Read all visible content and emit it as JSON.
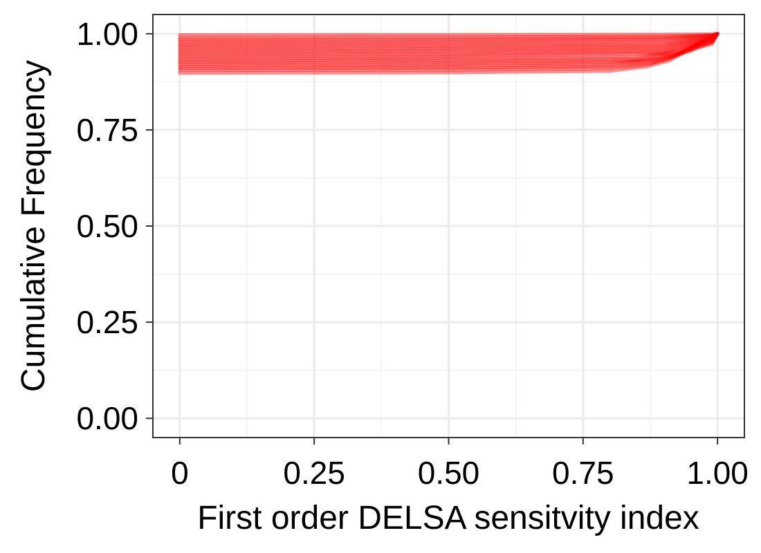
{
  "chart_data": {
    "type": "line",
    "title": "",
    "xlabel": "First order DELSA sensitvity index",
    "ylabel": "Cumulative Frequency",
    "xlim": [
      -0.05,
      1.05
    ],
    "ylim": [
      -0.05,
      1.05
    ],
    "x_ticks": [
      0,
      0.25,
      0.5,
      0.75,
      1.0
    ],
    "x_tick_labels": [
      "0",
      "0.25",
      "0.50",
      "0.75",
      "1.00"
    ],
    "y_ticks": [
      0,
      0.25,
      0.5,
      0.75,
      1.0
    ],
    "y_tick_labels": [
      "0.00",
      "0.25",
      "0.50",
      "0.75",
      "1.00"
    ],
    "grid": true,
    "legend": "none",
    "line_color": "#ff0000",
    "series": [
      {
        "values": [
          [
            0,
            0.997
          ],
          [
            0.5,
            0.9975
          ],
          [
            0.9,
            0.998
          ],
          [
            0.99,
            0.999
          ],
          [
            1.0,
            1.0
          ]
        ]
      },
      {
        "values": [
          [
            0,
            0.99
          ],
          [
            0.5,
            0.991
          ],
          [
            0.9,
            0.993
          ],
          [
            0.99,
            0.997
          ],
          [
            1.0,
            1.0
          ]
        ]
      },
      {
        "values": [
          [
            0,
            0.985
          ],
          [
            0.5,
            0.986
          ],
          [
            0.9,
            0.989
          ],
          [
            0.99,
            0.996
          ],
          [
            1.0,
            1.0
          ]
        ]
      },
      {
        "values": [
          [
            0,
            0.98
          ],
          [
            0.5,
            0.981
          ],
          [
            0.9,
            0.985
          ],
          [
            0.99,
            0.995
          ],
          [
            1.0,
            1.0
          ]
        ]
      },
      {
        "values": [
          [
            0,
            0.975
          ],
          [
            0.5,
            0.976
          ],
          [
            0.9,
            0.98
          ],
          [
            0.99,
            0.993
          ],
          [
            1.0,
            1.0
          ]
        ]
      },
      {
        "values": [
          [
            0,
            0.97
          ],
          [
            0.5,
            0.971
          ],
          [
            0.9,
            0.975
          ],
          [
            0.99,
            0.991
          ],
          [
            1.0,
            1.0
          ]
        ]
      },
      {
        "values": [
          [
            0,
            0.965
          ],
          [
            0.5,
            0.966
          ],
          [
            0.9,
            0.97
          ],
          [
            0.99,
            0.99
          ],
          [
            1.0,
            1.0
          ]
        ]
      },
      {
        "values": [
          [
            0,
            0.96
          ],
          [
            0.5,
            0.961
          ],
          [
            0.9,
            0.966
          ],
          [
            0.99,
            0.988
          ],
          [
            1.0,
            1.0
          ]
        ]
      },
      {
        "values": [
          [
            0,
            0.955
          ],
          [
            0.5,
            0.956
          ],
          [
            0.9,
            0.961
          ],
          [
            0.99,
            0.986
          ],
          [
            1.0,
            1.0
          ]
        ]
      },
      {
        "values": [
          [
            0,
            0.95
          ],
          [
            0.5,
            0.951
          ],
          [
            0.9,
            0.957
          ],
          [
            0.99,
            0.984
          ],
          [
            1.0,
            1.0
          ]
        ]
      },
      {
        "values": [
          [
            0,
            0.945
          ],
          [
            0.5,
            0.946
          ],
          [
            0.9,
            0.952
          ],
          [
            0.99,
            0.982
          ],
          [
            1.0,
            1.0
          ]
        ]
      },
      {
        "values": [
          [
            0,
            0.94
          ],
          [
            0.5,
            0.941
          ],
          [
            0.9,
            0.948
          ],
          [
            0.99,
            0.98
          ],
          [
            1.0,
            1.0
          ]
        ]
      },
      {
        "values": [
          [
            0,
            0.935
          ],
          [
            0.5,
            0.936
          ],
          [
            0.85,
            0.94
          ],
          [
            0.93,
            0.955
          ],
          [
            0.99,
            0.978
          ],
          [
            1.0,
            1.0
          ]
        ]
      },
      {
        "values": [
          [
            0,
            0.93
          ],
          [
            0.5,
            0.931
          ],
          [
            0.85,
            0.935
          ],
          [
            0.93,
            0.95
          ],
          [
            0.99,
            0.976
          ],
          [
            1.0,
            1.0
          ]
        ]
      },
      {
        "values": [
          [
            0,
            0.925
          ],
          [
            0.5,
            0.926
          ],
          [
            0.85,
            0.93
          ],
          [
            0.92,
            0.945
          ],
          [
            0.99,
            0.974
          ],
          [
            1.0,
            1.0
          ]
        ]
      },
      {
        "values": [
          [
            0,
            0.92
          ],
          [
            0.5,
            0.921
          ],
          [
            0.8,
            0.925
          ],
          [
            0.9,
            0.935
          ],
          [
            0.95,
            0.955
          ],
          [
            1.0,
            1.0
          ]
        ]
      },
      {
        "values": [
          [
            0,
            0.915
          ],
          [
            0.5,
            0.916
          ],
          [
            0.8,
            0.92
          ],
          [
            0.88,
            0.93
          ],
          [
            0.93,
            0.95
          ],
          [
            1.0,
            1.0
          ]
        ]
      },
      {
        "values": [
          [
            0,
            0.91
          ],
          [
            0.5,
            0.911
          ],
          [
            0.8,
            0.915
          ],
          [
            0.88,
            0.925
          ],
          [
            0.92,
            0.94
          ],
          [
            1.0,
            1.0
          ]
        ]
      },
      {
        "values": [
          [
            0,
            0.905
          ],
          [
            0.5,
            0.906
          ],
          [
            0.8,
            0.91
          ],
          [
            0.87,
            0.92
          ],
          [
            0.91,
            0.935
          ],
          [
            1.0,
            1.0
          ]
        ]
      },
      {
        "values": [
          [
            0,
            0.898
          ],
          [
            0.5,
            0.899
          ],
          [
            0.8,
            0.903
          ],
          [
            0.87,
            0.915
          ],
          [
            0.91,
            0.93
          ],
          [
            1.0,
            1.0
          ]
        ]
      }
    ]
  }
}
